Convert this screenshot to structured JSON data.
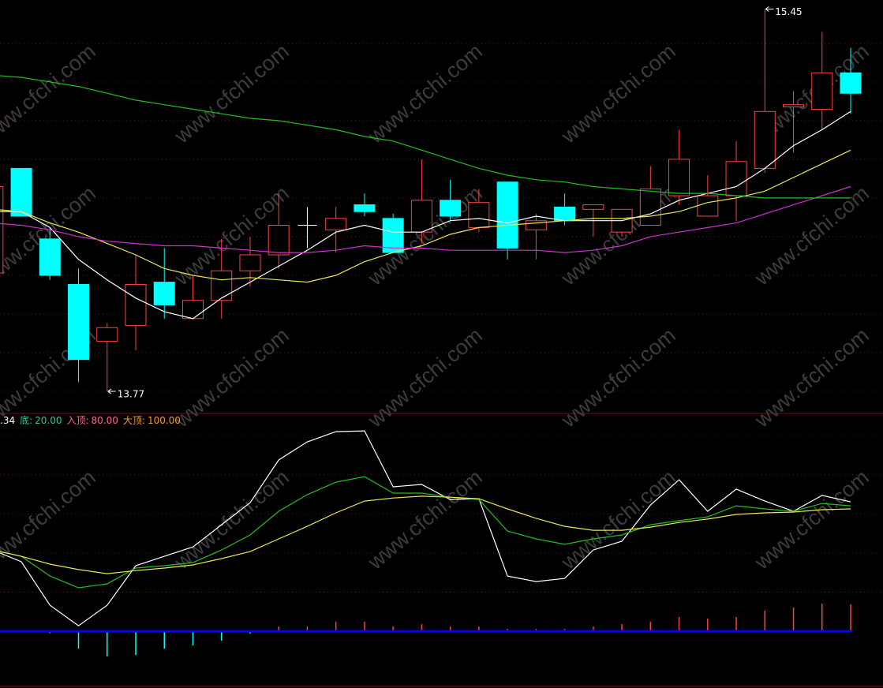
{
  "watermark": "www.cfchi.com",
  "chart_data": [
    {
      "type": "candlestick",
      "ylim": [
        13.68,
        15.49
      ],
      "grid": true,
      "up_color": "#ff4040",
      "down_color": "#00ffff",
      "doji_color": "#ffffff",
      "ohlc": [
        [
          14.29,
          14.67,
          14.29,
          14.67
        ],
        [
          14.75,
          14.75,
          14.54,
          14.54
        ],
        [
          14.44,
          14.49,
          14.26,
          14.28
        ],
        [
          14.24,
          14.31,
          13.81,
          13.91
        ],
        [
          13.99,
          14.07,
          13.77,
          14.05
        ],
        [
          14.06,
          14.37,
          13.95,
          14.24
        ],
        [
          14.25,
          14.4,
          14.09,
          14.15
        ],
        [
          14.09,
          14.28,
          14.09,
          14.17
        ],
        [
          14.17,
          14.44,
          14.09,
          14.3
        ],
        [
          14.3,
          14.45,
          14.23,
          14.37
        ],
        [
          14.37,
          14.64,
          14.31,
          14.5
        ],
        [
          14.5,
          14.58,
          14.4,
          14.5
        ],
        [
          14.48,
          14.58,
          14.38,
          14.53
        ],
        [
          14.59,
          14.64,
          14.54,
          14.56
        ],
        [
          14.53,
          14.55,
          14.38,
          14.38
        ],
        [
          14.47,
          14.79,
          14.42,
          14.61
        ],
        [
          14.61,
          14.7,
          14.52,
          14.54
        ],
        [
          14.49,
          14.66,
          14.47,
          14.6
        ],
        [
          14.69,
          14.69,
          14.35,
          14.4
        ],
        [
          14.48,
          14.55,
          14.35,
          14.52
        ],
        [
          14.58,
          14.64,
          14.5,
          14.52
        ],
        [
          14.57,
          14.59,
          14.45,
          14.59
        ],
        [
          14.47,
          14.57,
          14.45,
          14.57
        ],
        [
          14.5,
          14.76,
          14.5,
          14.66
        ],
        [
          14.63,
          14.92,
          14.59,
          14.79
        ],
        [
          14.54,
          14.72,
          14.54,
          14.63
        ],
        [
          14.63,
          14.87,
          14.52,
          14.78
        ],
        [
          14.75,
          15.45,
          14.73,
          15.0
        ],
        [
          15.02,
          15.09,
          14.82,
          15.03
        ],
        [
          15.01,
          15.35,
          14.92,
          15.17
        ],
        [
          15.17,
          15.28,
          14.99,
          15.08
        ]
      ],
      "series": [
        {
          "color": "#ffffff",
          "values": [
            14.56,
            14.56,
            14.49,
            14.35,
            14.26,
            14.18,
            14.12,
            14.09,
            14.18,
            14.25,
            14.32,
            14.39,
            14.47,
            14.5,
            14.47,
            14.47,
            14.52,
            14.53,
            14.51,
            14.54,
            14.52,
            14.52,
            14.52,
            14.55,
            14.61,
            14.64,
            14.67,
            14.75,
            14.85,
            14.92,
            15.0
          ]
        },
        {
          "color": "#e8e850",
          "values": [
            14.57,
            14.56,
            14.51,
            14.47,
            14.42,
            14.37,
            14.31,
            14.28,
            14.26,
            14.27,
            14.26,
            14.25,
            14.28,
            14.34,
            14.38,
            14.41,
            14.46,
            14.49,
            14.5,
            14.51,
            14.52,
            14.53,
            14.53,
            14.54,
            14.56,
            14.6,
            14.62,
            14.65,
            14.71,
            14.77,
            14.83
          ]
        },
        {
          "color": "#d030d0",
          "values": [
            14.51,
            14.5,
            14.48,
            14.45,
            14.43,
            14.42,
            14.41,
            14.41,
            14.4,
            14.39,
            14.38,
            14.38,
            14.39,
            14.41,
            14.4,
            14.4,
            14.39,
            14.39,
            14.39,
            14.39,
            14.38,
            14.39,
            14.41,
            14.45,
            14.47,
            14.49,
            14.51,
            14.55,
            14.59,
            14.63,
            14.67
          ]
        },
        {
          "color": "#20c020",
          "values": [
            15.16,
            15.15,
            15.13,
            15.11,
            15.08,
            15.05,
            15.03,
            15.01,
            14.99,
            14.97,
            14.96,
            14.94,
            14.92,
            14.89,
            14.87,
            14.83,
            14.79,
            14.75,
            14.72,
            14.7,
            14.69,
            14.67,
            14.66,
            14.65,
            14.64,
            14.64,
            14.63,
            14.62,
            14.62,
            14.62,
            14.62
          ]
        }
      ]
    },
    {
      "type": "line",
      "ylim": [
        -29,
        111.3
      ],
      "header": ".34",
      "grid_levels": [
        20,
        40,
        60,
        80,
        100
      ],
      "baseline_color": "#0000ff",
      "levels": [
        {
          "name": "底:",
          "value": 20,
          "label": "20.00",
          "color": "#2ec8a0"
        },
        {
          "name": "入顶:",
          "value": 80,
          "label": "80.00",
          "color": "#ff6688"
        },
        {
          "name": "大顶:",
          "value": 100,
          "label": "100.00",
          "color": "#f0a020"
        }
      ],
      "series": [
        {
          "color": "#ffffff",
          "values": [
            41.5,
            35.5,
            13.3,
            2.8,
            13.3,
            33.5,
            38.3,
            43.1,
            54.4,
            65.7,
            87.5,
            96.8,
            102.0,
            102.4,
            73.8,
            75.0,
            67.3,
            67.7,
            28.2,
            25.4,
            27.0,
            41.5,
            46.0,
            64.5,
            77.4,
            61.3,
            72.6,
            66.5,
            61.3,
            69.4,
            66.1
          ]
        },
        {
          "color": "#20c020",
          "values": [
            41.5,
            38.3,
            28.2,
            22.2,
            24.2,
            32.3,
            33.5,
            35.1,
            41.5,
            49.2,
            61.3,
            69.8,
            76.2,
            79.0,
            70.6,
            70.6,
            68.5,
            67.3,
            51.2,
            47.2,
            44.4,
            47.2,
            49.2,
            54.4,
            56.5,
            58.5,
            64.1,
            62.5,
            61.3,
            65.3,
            64.1
          ]
        },
        {
          "color": "#e8e850",
          "values": [
            41.5,
            38.3,
            34.3,
            31.5,
            29.4,
            31.0,
            32.3,
            33.9,
            37.1,
            40.7,
            47.2,
            53.6,
            60.5,
            66.5,
            68.1,
            69.0,
            68.5,
            67.7,
            62.5,
            57.7,
            53.6,
            51.6,
            51.6,
            53.2,
            55.6,
            57.3,
            59.7,
            60.5,
            60.9,
            62.1,
            62.5
          ]
        }
      ],
      "histogram": {
        "up_color": "#ff4040",
        "down_color": "#00ffff",
        "values": [
          0,
          0,
          -1,
          -8.9,
          -12.9,
          -12.1,
          -8.9,
          -7.3,
          -4.8,
          -1.2,
          2.4,
          2.4,
          4.8,
          4.8,
          2.4,
          3.6,
          2.4,
          2.4,
          1.2,
          1.2,
          1.2,
          2.4,
          3.6,
          4.8,
          7.3,
          6.5,
          7.3,
          10.5,
          12.1,
          14.1,
          13.7
        ]
      }
    }
  ]
}
